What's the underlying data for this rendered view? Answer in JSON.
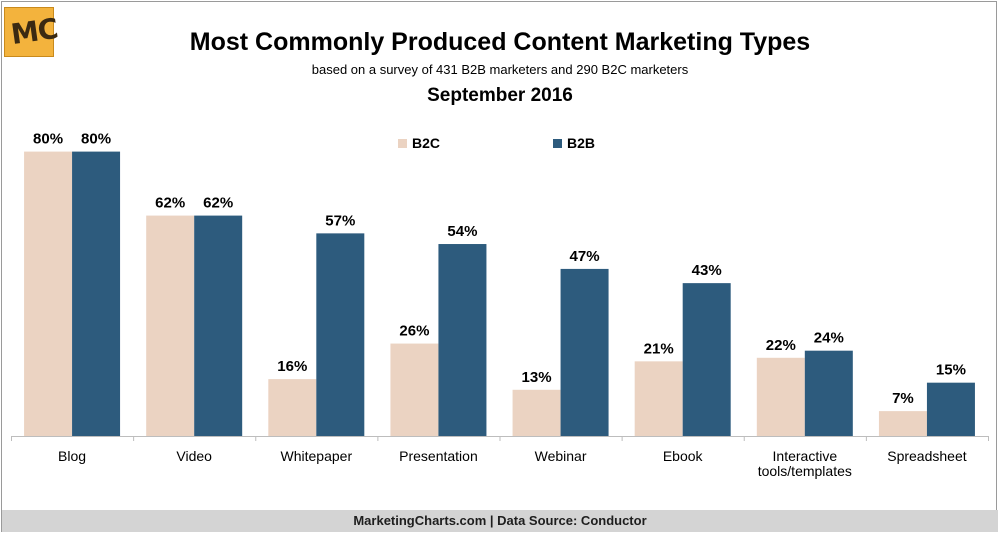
{
  "logo": {
    "text": "MC"
  },
  "header": {
    "title": "Most Commonly Produced Content Marketing Types",
    "subtitle": "based on a survey of 431 B2B marketers and 290 B2C marketers",
    "date": "September 2016"
  },
  "footer": {
    "text": "MarketingCharts.com | Data Source: Conductor"
  },
  "colors": {
    "b2c": "#ebd3c2",
    "b2b": "#2d5b7d"
  },
  "chart_data": {
    "type": "bar",
    "title": "Most Commonly Produced Content Marketing Types",
    "subtitle": "based on a survey of 431 B2B marketers and 290 B2C marketers",
    "xlabel": "",
    "ylabel": "",
    "ylim": [
      0,
      100
    ],
    "grid": false,
    "legend_position": "top-center",
    "categories": [
      "Blog",
      "Video",
      "Whitepaper",
      "Presentation",
      "Webinar",
      "Ebook",
      "Interactive tools/templates",
      "Spreadsheet"
    ],
    "category_lines": [
      [
        "Blog"
      ],
      [
        "Video"
      ],
      [
        "Whitepaper"
      ],
      [
        "Presentation"
      ],
      [
        "Webinar"
      ],
      [
        "Ebook"
      ],
      [
        "Interactive",
        "tools/templates"
      ],
      [
        "Spreadsheet"
      ]
    ],
    "series": [
      {
        "name": "B2C",
        "color": "#ebd3c2",
        "values": [
          80,
          62,
          16,
          26,
          13,
          21,
          22,
          7
        ]
      },
      {
        "name": "B2B",
        "color": "#2d5b7d",
        "values": [
          80,
          62,
          57,
          54,
          47,
          43,
          24,
          15
        ]
      }
    ],
    "value_suffix": "%"
  }
}
